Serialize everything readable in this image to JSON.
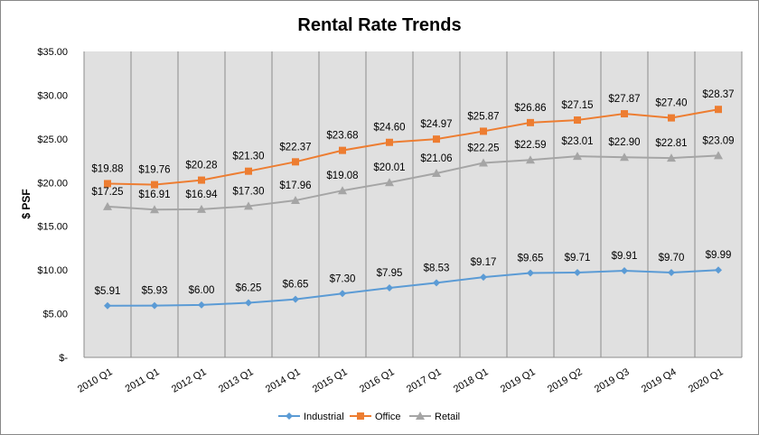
{
  "chart_data": {
    "type": "line",
    "title": "Rental Rate Trends",
    "xlabel": "",
    "ylabel": "$ PSF",
    "ylim": [
      0,
      35
    ],
    "yticks": [
      0,
      5,
      10,
      15,
      20,
      25,
      30,
      35
    ],
    "ytick_labels": [
      "$-",
      "$5.00",
      "$10.00",
      "$15.00",
      "$20.00",
      "$25.00",
      "$30.00",
      "$35.00"
    ],
    "grid": "vertical",
    "legend": "bottom",
    "categories": [
      "2010 Q1",
      "2011 Q1",
      "2012 Q1",
      "2013 Q1",
      "2014 Q1",
      "2015 Q1",
      "2016 Q1",
      "2017 Q1",
      "2018 Q1",
      "2019 Q1",
      "2019 Q2",
      "2019 Q3",
      "2019 Q4",
      "2020 Q1"
    ],
    "series": [
      {
        "name": "Industrial",
        "color": "#5B9BD5",
        "marker": "diamond",
        "values": [
          5.91,
          5.93,
          6.0,
          6.25,
          6.65,
          7.3,
          7.95,
          8.53,
          9.17,
          9.65,
          9.71,
          9.91,
          9.7,
          9.99
        ],
        "labels": [
          "$5.91",
          "$5.93",
          "$6.00",
          "$6.25",
          "$6.65",
          "$7.30",
          "$7.95",
          "$8.53",
          "$9.17",
          "$9.65",
          "$9.71",
          "$9.91",
          "$9.70",
          "$9.99"
        ]
      },
      {
        "name": "Office",
        "color": "#ED7D31",
        "marker": "square",
        "values": [
          19.88,
          19.76,
          20.28,
          21.3,
          22.37,
          23.68,
          24.6,
          24.97,
          25.87,
          26.86,
          27.15,
          27.87,
          27.4,
          28.37
        ],
        "labels": [
          "$19.88",
          "$19.76",
          "$20.28",
          "$21.30",
          "$22.37",
          "$23.68",
          "$24.60",
          "$24.97",
          "$25.87",
          "$26.86",
          "$27.15",
          "$27.87",
          "$27.40",
          "$28.37"
        ]
      },
      {
        "name": "Retail",
        "color": "#A5A5A5",
        "marker": "triangle",
        "values": [
          17.25,
          16.91,
          16.94,
          17.3,
          17.96,
          19.08,
          20.01,
          21.06,
          22.25,
          22.59,
          23.01,
          22.9,
          22.81,
          23.09
        ],
        "labels": [
          "$17.25",
          "$16.91",
          "$16.94",
          "$17.30",
          "$17.96",
          "$19.08",
          "$20.01",
          "$21.06",
          "$22.25",
          "$22.59",
          "$23.01",
          "$22.90",
          "$22.81",
          "$23.09"
        ]
      }
    ]
  }
}
